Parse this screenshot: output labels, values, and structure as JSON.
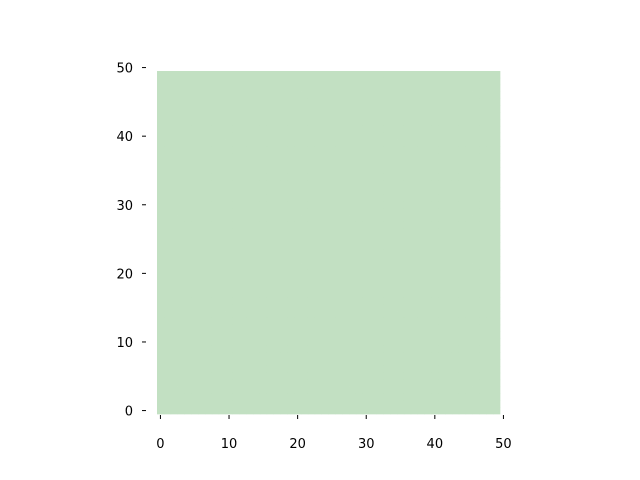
{
  "chart_data": {
    "type": "heatmap",
    "title": "",
    "xlabel": "",
    "ylabel": "",
    "xlim": [
      -0.5,
      49.5
    ],
    "ylim": [
      -0.5,
      49.5
    ],
    "x_ticks": [
      0,
      10,
      20,
      30,
      40,
      50
    ],
    "y_ticks": [
      0,
      10,
      20,
      30,
      40,
      50
    ],
    "x_tick_labels": [
      "0",
      "10",
      "20",
      "30",
      "40",
      "50"
    ],
    "y_tick_labels": [
      "0",
      "10",
      "20",
      "30",
      "40",
      "50"
    ],
    "grid": false,
    "legend": "none",
    "frame": false,
    "cells": {
      "rows": 50,
      "cols": 50,
      "value": "uniform",
      "color": "#c2e0c2"
    }
  }
}
